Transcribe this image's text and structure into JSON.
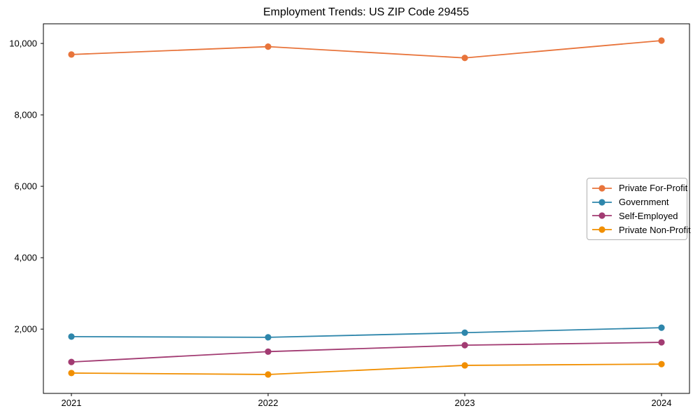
{
  "chart_data": {
    "type": "line",
    "title": "Employment Trends: US ZIP Code 29455",
    "categories": [
      "2021",
      "2022",
      "2023",
      "2024"
    ],
    "series": [
      {
        "name": "Private For-Profit",
        "color": "#E8743B",
        "values": [
          9690,
          9910,
          9595,
          10080
        ]
      },
      {
        "name": "Government",
        "color": "#2E86AB",
        "values": [
          1790,
          1770,
          1900,
          2040
        ]
      },
      {
        "name": "Self-Employed",
        "color": "#A23B72",
        "values": [
          1080,
          1370,
          1550,
          1630
        ]
      },
      {
        "name": "Private Non-Profit",
        "color": "#F18F01",
        "values": [
          770,
          730,
          985,
          1020
        ]
      }
    ],
    "xlabel": "",
    "ylabel": "",
    "ylim": [
      200,
      10550
    ],
    "yticks": [
      2000,
      4000,
      6000,
      8000,
      10000
    ],
    "grid": false,
    "marker": "circle",
    "legend_position": "center-right",
    "frame_color": "#000000",
    "legend_border_color": "#b0b0b0",
    "background_color": "#ffffff"
  }
}
